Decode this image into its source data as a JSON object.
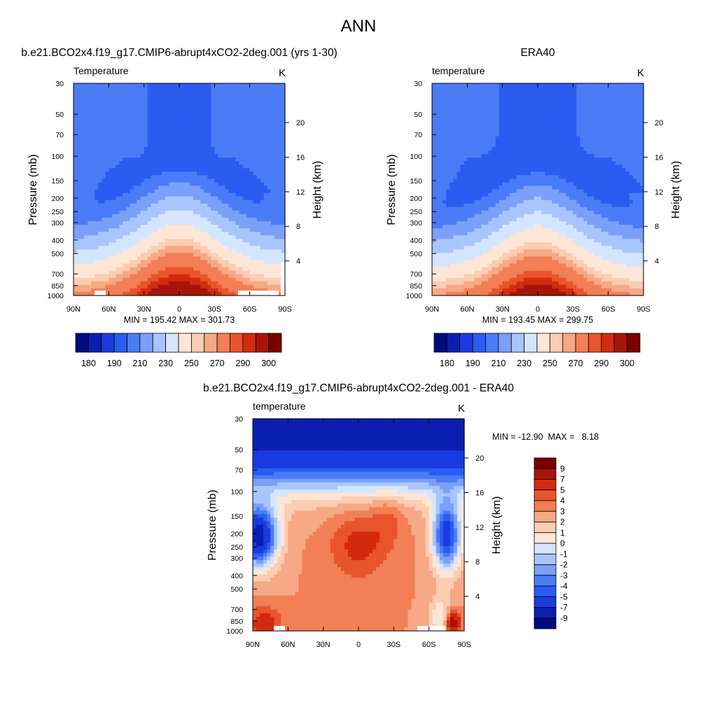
{
  "figure": {
    "title": "ANN",
    "colors": {
      "abs_scale": [
        "#000a7f",
        "#0a1fb2",
        "#1a3be0",
        "#2b5cf2",
        "#4a7cf7",
        "#7aa0fa",
        "#a9c5fd",
        "#d4e6ff",
        "#fde6d6",
        "#fbcdb2",
        "#f7a884",
        "#f27f56",
        "#e8542d",
        "#d22b10",
        "#a8140a",
        "#7a0000"
      ],
      "diff_scale": [
        "#000a7f",
        "#0a1fb2",
        "#1a3be0",
        "#2b5cf2",
        "#4a7cf7",
        "#7aa0fa",
        "#a9c5fd",
        "#d4e6ff",
        "#fde6d6",
        "#fbcdb2",
        "#f7a884",
        "#f27f56",
        "#e8542d",
        "#d22b10",
        "#a8140a",
        "#7a0000"
      ],
      "abs_field": [
        "#2b5cf2",
        "#4a7cf7",
        "#7aa0fa",
        "#a9c5fd",
        "#d4e6ff",
        "#fde6d6",
        "#fbcdb2",
        "#f7a884",
        "#f27f56",
        "#e8542d",
        "#d22b10",
        "#a8140a"
      ],
      "diff_field": [
        "#0a1fb2",
        "#1a3be0",
        "#2b5cf2",
        "#4a7cf7",
        "#7aa0fa",
        "#a9c5fd",
        "#d4e6ff",
        "#fde6d6",
        "#fbcdb2",
        "#f7a884",
        "#f27f56",
        "#e8542d",
        "#d22b10",
        "#a8140a"
      ]
    }
  },
  "chart_data": [
    {
      "type": "heatmap",
      "title": "b.e21.BCO2x4.f19_g17.CMIP6-abrupt4xCO2-2deg.001 (yrs 1-30)",
      "variable_label": "Temperature",
      "units": "K",
      "ylabel": "Pressure (mb)",
      "y2label": "Height (km)",
      "x_ticks": [
        "90N",
        "60N",
        "30N",
        "0",
        "30S",
        "60S",
        "90S"
      ],
      "y_ticks": [
        "30",
        "50",
        "70",
        "100",
        "150",
        "200",
        "250",
        "300",
        "400",
        "500",
        "700",
        "850",
        "1000"
      ],
      "y2_ticks": [
        "20",
        "16",
        "12",
        "8",
        "4"
      ],
      "stats": "MIN = 195.42  MAX = 301.73",
      "colorbar_labels": [
        "180",
        "190",
        "210",
        "230",
        "250",
        "270",
        "290",
        "300"
      ],
      "min": 195.42,
      "max": 301.73
    },
    {
      "type": "heatmap",
      "title": "ERA40",
      "variable_label": "temperature",
      "units": "K",
      "ylabel": "Pressure (mb)",
      "y2label": "Height (km)",
      "x_ticks": [
        "90N",
        "60N",
        "30N",
        "0",
        "30S",
        "60S",
        "90S"
      ],
      "y_ticks": [
        "30",
        "50",
        "70",
        "100",
        "150",
        "200",
        "250",
        "300",
        "400",
        "500",
        "700",
        "850",
        "1000"
      ],
      "y2_ticks": [
        "20",
        "16",
        "12",
        "8",
        "4"
      ],
      "stats": "MIN = 193.45  MAX = 299.75",
      "colorbar_labels": [
        "180",
        "190",
        "210",
        "230",
        "250",
        "270",
        "290",
        "300"
      ],
      "min": 193.45,
      "max": 299.75
    },
    {
      "type": "heatmap",
      "title": "b.e21.BCO2x4.f19_g17.CMIP6-abrupt4xCO2-2deg.001 - ERA40",
      "variable_label": "temperature",
      "units": "K",
      "ylabel": "Pressure (mb)",
      "y2label": "Height (km)",
      "x_ticks": [
        "90N",
        "60N",
        "30N",
        "0",
        "30S",
        "60S",
        "90S"
      ],
      "y_ticks": [
        "30",
        "50",
        "70",
        "100",
        "150",
        "200",
        "250",
        "300",
        "400",
        "500",
        "700",
        "850",
        "1000"
      ],
      "y2_ticks": [
        "20",
        "16",
        "12",
        "8",
        "4"
      ],
      "stats": "MIN = -12.90  MAX =   8.18",
      "colorbar_labels": [
        "9",
        "7",
        "5",
        "4",
        "3",
        "2",
        "1",
        "0",
        "-1",
        "-2",
        "-3",
        "-4",
        "-5",
        "-7",
        "-9"
      ],
      "min": -12.9,
      "max": 8.18
    }
  ]
}
